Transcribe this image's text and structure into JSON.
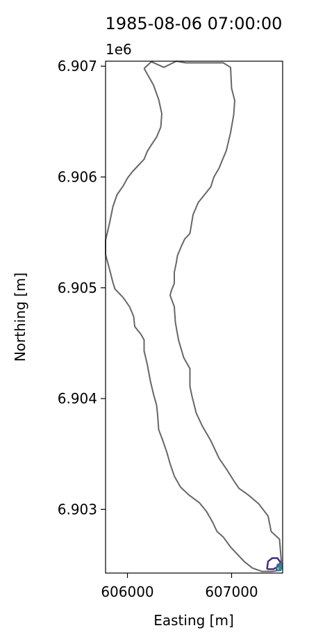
{
  "chart_data": {
    "type": "line",
    "title": "1985-08-06 07:00:00",
    "xlabel": "Easting [m]",
    "ylabel": "Northing [m]",
    "y_offset_label": "1e6",
    "xlim": [
      605790,
      607490
    ],
    "ylim": [
      6902425,
      6907045
    ],
    "x_ticks": [
      606000,
      607000
    ],
    "x_tick_labels": [
      "606000",
      "607000"
    ],
    "y_ticks": [
      6903000,
      6904000,
      6905000,
      6906000,
      6907000
    ],
    "y_tick_labels": [
      "6.903",
      "6.904",
      "6.905",
      "6.906",
      "6.907"
    ],
    "grid": false,
    "series": [
      {
        "color": "#666666",
        "points": [
          [
            606160,
            6906980
          ],
          [
            606230,
            6907040
          ],
          [
            606350,
            6906990
          ],
          [
            606470,
            6907045
          ],
          [
            606560,
            6907030
          ],
          [
            606920,
            6907030
          ],
          [
            606990,
            6906990
          ],
          [
            607000,
            6906800
          ],
          [
            607030,
            6906690
          ],
          [
            607020,
            6906560
          ],
          [
            606990,
            6906400
          ],
          [
            606950,
            6906240
          ],
          [
            606910,
            6906150
          ],
          [
            606880,
            6906080
          ],
          [
            606830,
            6906000
          ],
          [
            606800,
            6905910
          ],
          [
            606740,
            6905840
          ],
          [
            606680,
            6905770
          ],
          [
            606630,
            6905660
          ],
          [
            606600,
            6905490
          ],
          [
            606550,
            6905440
          ],
          [
            606520,
            6905380
          ],
          [
            606480,
            6905290
          ],
          [
            606470,
            6905230
          ],
          [
            606450,
            6905140
          ],
          [
            606450,
            6905040
          ],
          [
            606420,
            6904970
          ],
          [
            606410,
            6904930
          ],
          [
            606450,
            6904830
          ],
          [
            606460,
            6904690
          ],
          [
            606490,
            6904530
          ],
          [
            606540,
            6904370
          ],
          [
            606600,
            6904270
          ],
          [
            606600,
            6904110
          ],
          [
            606620,
            6904020
          ],
          [
            606660,
            6903870
          ],
          [
            606720,
            6903750
          ],
          [
            606800,
            6903620
          ],
          [
            606880,
            6903460
          ],
          [
            606960,
            6903350
          ],
          [
            607020,
            6903260
          ],
          [
            607070,
            6903190
          ],
          [
            607160,
            6903130
          ],
          [
            607260,
            6903050
          ],
          [
            607350,
            6902940
          ],
          [
            607380,
            6902800
          ],
          [
            607460,
            6902730
          ],
          [
            607480,
            6902500
          ],
          [
            607460,
            6902450
          ],
          [
            607390,
            6902440
          ],
          [
            607290,
            6902440
          ],
          [
            607200,
            6902470
          ],
          [
            607120,
            6902530
          ],
          [
            607060,
            6902590
          ],
          [
            606990,
            6902660
          ],
          [
            606920,
            6902750
          ],
          [
            606860,
            6902800
          ],
          [
            606820,
            6902880
          ],
          [
            606760,
            6902980
          ],
          [
            606690,
            6903060
          ],
          [
            606590,
            6903130
          ],
          [
            606510,
            6903200
          ],
          [
            606450,
            6903300
          ],
          [
            606410,
            6903410
          ],
          [
            606380,
            6903510
          ],
          [
            606340,
            6903620
          ],
          [
            606300,
            6903720
          ],
          [
            606290,
            6903850
          ],
          [
            606280,
            6903940
          ],
          [
            606250,
            6904040
          ],
          [
            606220,
            6904160
          ],
          [
            606190,
            6904310
          ],
          [
            606160,
            6904430
          ],
          [
            606160,
            6904530
          ],
          [
            606130,
            6904580
          ],
          [
            606070,
            6904650
          ],
          [
            606060,
            6904740
          ],
          [
            606020,
            6904830
          ],
          [
            605960,
            6904910
          ],
          [
            605880,
            6904990
          ],
          [
            605860,
            6905050
          ],
          [
            605830,
            6905160
          ],
          [
            605790,
            6905300
          ],
          [
            605790,
            6905430
          ],
          [
            605830,
            6905590
          ],
          [
            605860,
            6905730
          ],
          [
            605900,
            6905840
          ],
          [
            605960,
            6905920
          ],
          [
            606000,
            6905990
          ],
          [
            606050,
            6906050
          ],
          [
            606110,
            6906110
          ],
          [
            606160,
            6906160
          ],
          [
            606190,
            6906230
          ],
          [
            606230,
            6906290
          ],
          [
            606280,
            6906360
          ],
          [
            606320,
            6906450
          ],
          [
            606330,
            6906570
          ],
          [
            606300,
            6906700
          ],
          [
            606250,
            6906830
          ],
          [
            606160,
            6906980
          ]
        ]
      },
      {
        "color": "#4b2a7e",
        "points": [
          [
            607340,
            6902460
          ],
          [
            607350,
            6902530
          ],
          [
            607390,
            6902560
          ],
          [
            607440,
            6902560
          ],
          [
            607470,
            6902520
          ],
          [
            607440,
            6902480
          ],
          [
            607400,
            6902460
          ],
          [
            607340,
            6902460
          ]
        ]
      },
      {
        "color": "#3b6e9c",
        "points": [
          [
            607430,
            6902450
          ],
          [
            607440,
            6902500
          ],
          [
            607470,
            6902515
          ],
          [
            607485,
            6902480
          ],
          [
            607470,
            6902450
          ],
          [
            607430,
            6902450
          ]
        ]
      },
      {
        "color": "#2d8f8c",
        "points": [
          [
            607455,
            6902460
          ],
          [
            607460,
            6902490
          ],
          [
            607480,
            6902495
          ],
          [
            607485,
            6902465
          ],
          [
            607455,
            6902460
          ]
        ]
      }
    ]
  }
}
